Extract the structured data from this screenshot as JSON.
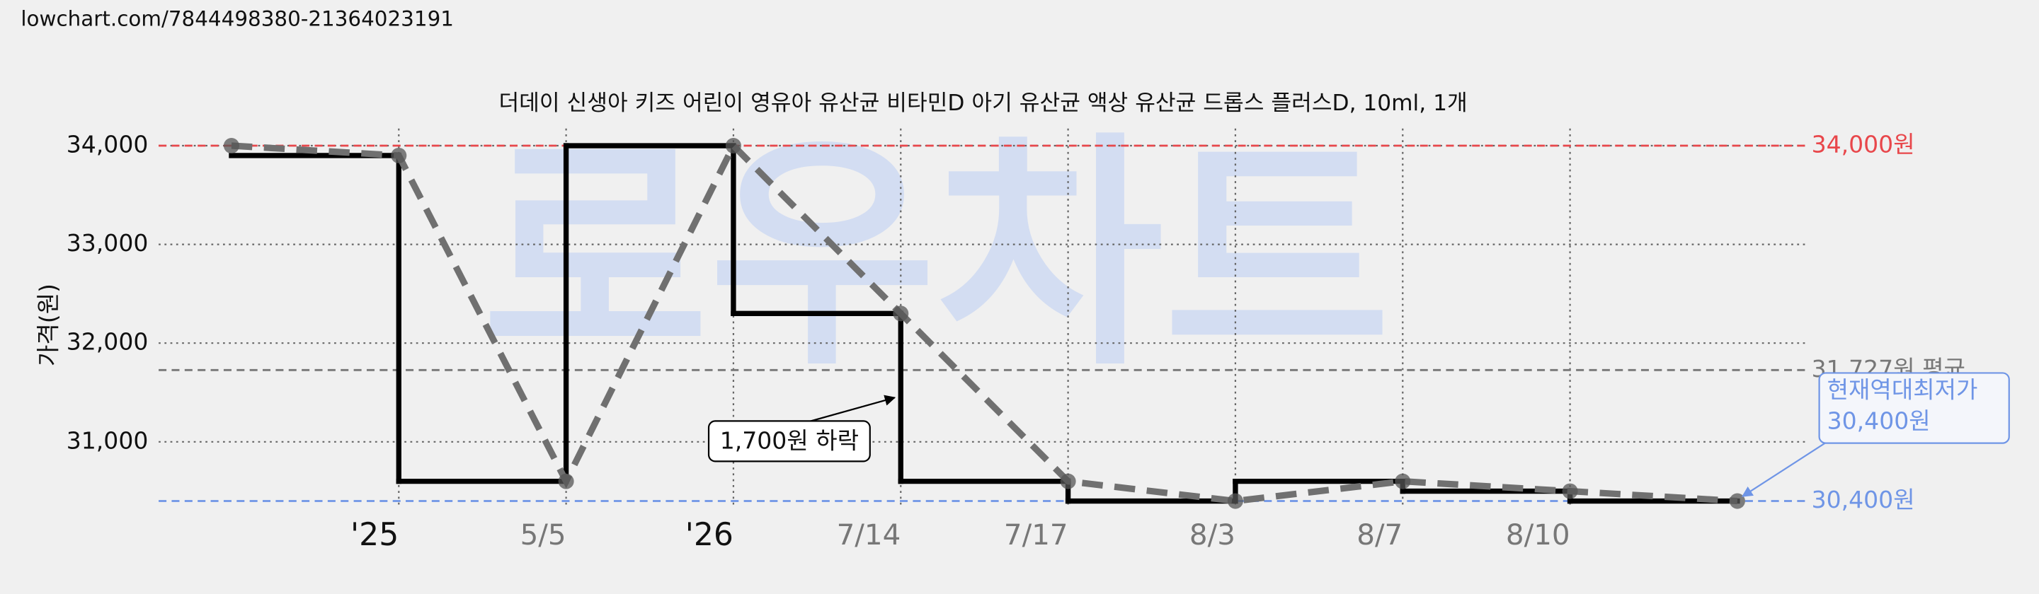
{
  "url": "lowchart.com/7844498380-21364023191",
  "chart_data": {
    "type": "line",
    "title": "더데이 신생아 키즈 어린이 영유아 유산균 비타민D 아기 유산균 액상 유산균 드롭스 플러스D, 10ml, 1개",
    "y_label": "가격(원)",
    "watermark": "로우차트",
    "categories": [
      null,
      "'25",
      "5/5",
      "'26",
      "7/14",
      "7/17",
      "8/3",
      "8/7",
      "8/10",
      null
    ],
    "values": [
      34000,
      33900,
      30600,
      34000,
      32300,
      30600,
      30400,
      30600,
      30500,
      30400
    ],
    "step_color": "#000000",
    "line_color": "#707070",
    "ylim": [
      30200,
      34700
    ],
    "yticks": [
      {
        "value": 31000,
        "label": "31,000"
      },
      {
        "value": 32000,
        "label": "32,000"
      },
      {
        "value": 33000,
        "label": "33,000"
      },
      {
        "value": 34000,
        "label": "34,000"
      }
    ],
    "grid": true,
    "reference_lines": [
      {
        "value": 34000,
        "label": "34,000원",
        "color": "#e8474b"
      },
      {
        "value": 31727,
        "label": "31,727원 평균",
        "color": "#777777"
      },
      {
        "value": 30400,
        "label": "30,400원",
        "color": "#6f95e6"
      }
    ],
    "annotation": {
      "text": "1,700원 하락"
    },
    "callout": {
      "lines": [
        "현재역대최저가",
        "30,400원"
      ],
      "color": "#6f95e6"
    }
  }
}
